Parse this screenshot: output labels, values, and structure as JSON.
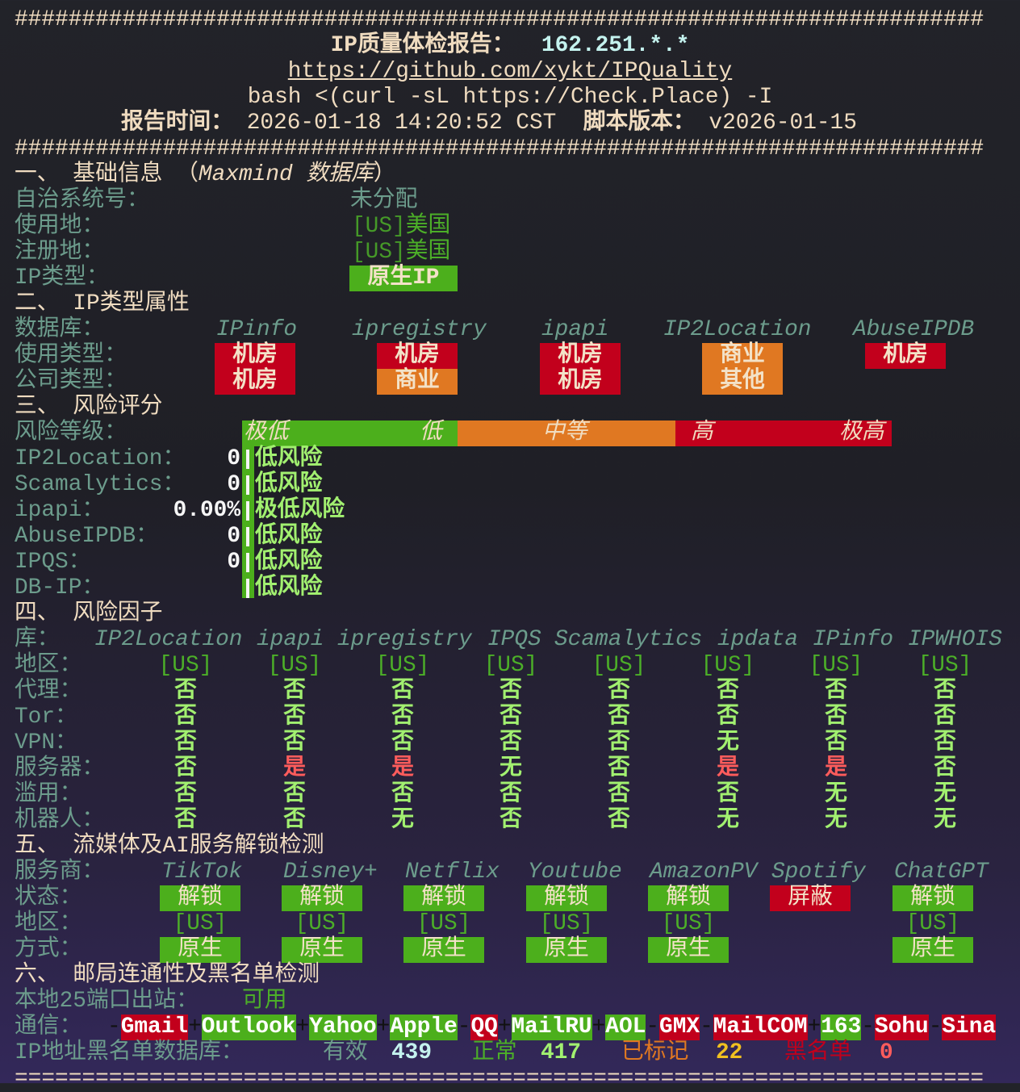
{
  "header": {
    "rule": "########################################################################",
    "title_label": "IP质量体检报告：",
    "ip": "162.251.*.*",
    "url": "https://github.com/xykt/IPQuality",
    "command": "bash <(curl -sL https://Check.Place) -I",
    "time_label": "报告时间：",
    "time": "2026-01-18 14:20:52 CST",
    "version_label": "脚本版本：",
    "version": "v2026-01-15"
  },
  "basic": {
    "title": "一、 基础信息 （",
    "title_italic": "Maxmind 数据库",
    "title_end": "）",
    "asn_label": "自治系统号：",
    "asn": "未分配",
    "usage_label": "使用地：",
    "usage_code": "[US]",
    "usage_country": "美国",
    "reg_label": "注册地：",
    "reg_code": "[US]",
    "reg_country": "美国",
    "type_label": "IP类型：",
    "type": "原生IP"
  },
  "ip_type": {
    "title": "二、 IP类型属性",
    "db_label": "数据库：",
    "usage_label": "使用类型：",
    "company_label": "公司类型：",
    "databases": [
      "IPinfo",
      "ipregistry",
      "ipapi",
      "IP2Location",
      "AbuseIPDB"
    ],
    "usage": [
      {
        "text": "机房",
        "level": "red"
      },
      {
        "text": "机房",
        "level": "red"
      },
      {
        "text": "机房",
        "level": "red"
      },
      {
        "text": "商业",
        "level": "orange"
      },
      {
        "text": "机房",
        "level": "red"
      }
    ],
    "company": [
      {
        "text": "机房",
        "level": "red"
      },
      {
        "text": "商业",
        "level": "orange"
      },
      {
        "text": "机房",
        "level": "red"
      },
      {
        "text": "其他",
        "level": "orange"
      }
    ]
  },
  "risk_score": {
    "title": "三、 风险评分",
    "level_label": "风险等级：",
    "scale": [
      "极低",
      "低",
      "中等",
      "高",
      "极高"
    ],
    "rows": [
      {
        "source": "IP2Location：",
        "score": "0",
        "verdict": "低风险"
      },
      {
        "source": "Scamalytics：",
        "score": "0",
        "verdict": "低风险"
      },
      {
        "source": "ipapi：",
        "score": "0.00%",
        "verdict": "极低风险"
      },
      {
        "source": "AbuseIPDB：",
        "score": "0",
        "verdict": "低风险"
      },
      {
        "source": "IPQS：",
        "score": "0",
        "verdict": "低风险"
      },
      {
        "source": "DB-IP：",
        "score": "",
        "verdict": "低风险"
      }
    ]
  },
  "risk_factors": {
    "title": "四、 风险因子",
    "db_label": "库：",
    "databases": [
      "IP2Location",
      "ipapi",
      "ipregistry",
      "IPQS",
      "Scamalytics",
      "ipdata",
      "IPinfo",
      "IPWHOIS"
    ],
    "region_label": "地区：",
    "regions": [
      "[US]",
      "[US]",
      "[US]",
      "[US]",
      "[US]",
      "[US]",
      "[US]",
      "[US]"
    ],
    "rows": [
      {
        "label": "代理：",
        "values": [
          "否",
          "否",
          "否",
          "否",
          "否",
          "否",
          "否",
          "否"
        ]
      },
      {
        "label": "Tor：",
        "values": [
          "否",
          "否",
          "否",
          "否",
          "否",
          "否",
          "否",
          "否"
        ]
      },
      {
        "label": "VPN：",
        "values": [
          "否",
          "否",
          "否",
          "否",
          "否",
          "无",
          "否",
          "否"
        ]
      },
      {
        "label": "服务器：",
        "values": [
          "否",
          "是",
          "是",
          "无",
          "否",
          "是",
          "是",
          "否"
        ]
      },
      {
        "label": "滥用：",
        "values": [
          "否",
          "否",
          "否",
          "否",
          "否",
          "否",
          "无",
          "无"
        ]
      },
      {
        "label": "机器人：",
        "values": [
          "否",
          "否",
          "无",
          "否",
          "否",
          "无",
          "无",
          "无"
        ]
      }
    ]
  },
  "streaming": {
    "title": "五、 流媒体及AI服务解锁检测",
    "service_label": "服务商：",
    "status_label": "状态：",
    "region_label": "地区：",
    "method_label": "方式：",
    "services": [
      {
        "name": "TikTok",
        "status": "解锁",
        "ok": true,
        "region": "[US]",
        "method": "原生"
      },
      {
        "name": "Disney+",
        "status": "解锁",
        "ok": true,
        "region": "[US]",
        "method": "原生"
      },
      {
        "name": "Netflix",
        "status": "解锁",
        "ok": true,
        "region": "[US]",
        "method": "原生"
      },
      {
        "name": "Youtube",
        "status": "解锁",
        "ok": true,
        "region": "[US]",
        "method": "原生"
      },
      {
        "name": "AmazonPV",
        "status": "解锁",
        "ok": true,
        "region": "[US]",
        "method": "原生"
      },
      {
        "name": "Spotify",
        "status": "屏蔽",
        "ok": false,
        "region": "",
        "method": ""
      },
      {
        "name": "ChatGPT",
        "status": "解锁",
        "ok": true,
        "region": "[US]",
        "method": "原生"
      }
    ]
  },
  "mail": {
    "title": "六、 邮局连通性及黑名单检测",
    "port_label": "本地25端口出站：",
    "port_status": "可用",
    "comm_label": "通信：",
    "providers": [
      {
        "name": "Gmail",
        "ok": false
      },
      {
        "name": "Outlook",
        "ok": true
      },
      {
        "name": "Yahoo",
        "ok": true
      },
      {
        "name": "Apple",
        "ok": true
      },
      {
        "name": "QQ",
        "ok": false
      },
      {
        "name": "MailRU",
        "ok": true
      },
      {
        "name": "AOL",
        "ok": true
      },
      {
        "name": "GMX",
        "ok": false
      },
      {
        "name": "MailCOM",
        "ok": false
      },
      {
        "name": "163",
        "ok": true
      },
      {
        "name": "Sohu",
        "ok": false
      },
      {
        "name": "Sina",
        "ok": false
      }
    ],
    "blacklist_label": "IP地址黑名单数据库：",
    "valid_label": "有效",
    "valid": "439",
    "clean_label": "正常",
    "clean": "417",
    "marked_label": "已标记",
    "marked": "22",
    "blacklisted_label": "黑名单",
    "blacklisted": "0"
  },
  "footer": {
    "rule": "========================================================================"
  },
  "colors": {
    "green": "#4caf1c",
    "red": "#c2001c",
    "orange": "#e07822",
    "label": "#6c9c8c",
    "bright_green": "#a2f070",
    "text": "#f0dcc0"
  }
}
